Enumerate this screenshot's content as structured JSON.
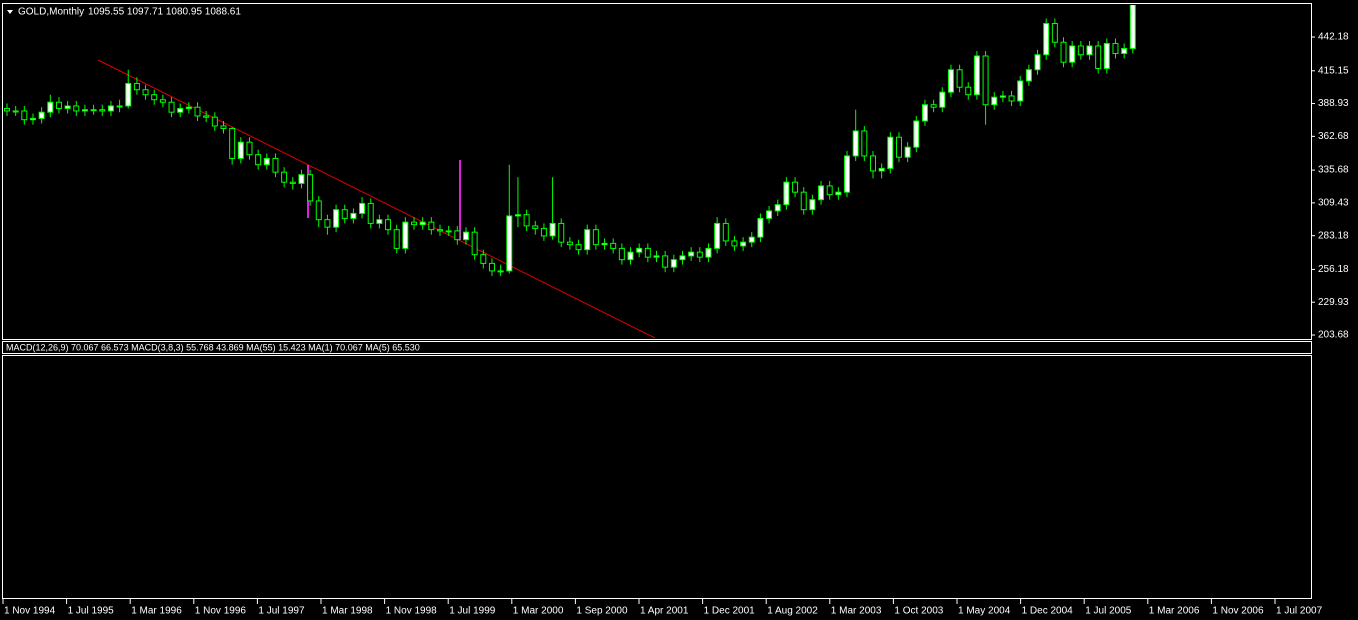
{
  "chart_data": {
    "type": "candlestick",
    "title": "GOLD,Monthly",
    "subtitle": "1095.55 1097.71 1080.95 1088.61",
    "indicator_label": "MACD(12,26,9) 70.067 66.573 MACD(3,8,3) 55.768 43.869 MA(55) 15.423 MA(1) 70.067 MA(5) 65.530",
    "up_color": "#ffffff",
    "down_color": "#000000",
    "wick_color": "#00ff00",
    "ylim": [
      201.3,
      467.8
    ],
    "yticks": [
      442.18,
      415.15,
      388.93,
      362.68,
      335.68,
      309.43,
      283.18,
      256.18,
      229.93,
      203.68
    ],
    "xticks": [
      "1 Nov 1994",
      "1 Jul 1995",
      "1 Mar 1996",
      "1 Nov 1996",
      "1 Jul 1997",
      "1 Mar 1998",
      "1 Nov 1998",
      "1 Jul 1999",
      "1 Mar 2000",
      "1 Sep 2000",
      "1 Apr 2001",
      "1 Dec 2001",
      "1 Aug 2002",
      "1 Mar 2003",
      "1 Oct 2003",
      "1 May 2004",
      "1 Dec 2004",
      "1 Jul 2005",
      "1 Mar 2006",
      "1 Nov 2006",
      "1 Jul 2007"
    ],
    "open": [
      385,
      383,
      383,
      376,
      377,
      382,
      390,
      385,
      387,
      383,
      384,
      384,
      383,
      387,
      387,
      405,
      400,
      396,
      392,
      390,
      382,
      385,
      386,
      379,
      378,
      371,
      369,
      345,
      358,
      348,
      340,
      345,
      334,
      326,
      325,
      332,
      311,
      296,
      290,
      304,
      297,
      301,
      309,
      293,
      296,
      288,
      273,
      294,
      292,
      294,
      288,
      287,
      287,
      280,
      286,
      268,
      261,
      255,
      255,
      299,
      300,
      291,
      289,
      283,
      293,
      278,
      276,
      272,
      288,
      276,
      277,
      273,
      264,
      270,
      273,
      266,
      267,
      258,
      264,
      267,
      270,
      266,
      273,
      293,
      279,
      275,
      278,
      282,
      297,
      303,
      308,
      326,
      318,
      304,
      312,
      323,
      316,
      318,
      347,
      367,
      347,
      335,
      337,
      362,
      346,
      354,
      375,
      388,
      386,
      398,
      416,
      402,
      396,
      427,
      388,
      394,
      395,
      391,
      407,
      416,
      428,
      453,
      438,
      422,
      435,
      428,
      435,
      417,
      437,
      429,
      433
    ],
    "high": [
      389,
      387,
      387,
      381,
      386,
      396,
      394,
      391,
      391,
      388,
      388,
      388,
      391,
      392,
      416,
      410,
      404,
      400,
      396,
      394,
      389,
      390,
      390,
      383,
      382,
      375,
      370,
      362,
      362,
      352,
      349,
      349,
      338,
      330,
      336,
      336,
      315,
      300,
      308,
      308,
      305,
      314,
      313,
      300,
      300,
      292,
      298,
      298,
      298,
      298,
      292,
      291,
      291,
      290,
      290,
      272,
      265,
      260,
      340,
      330,
      304,
      295,
      293,
      330,
      297,
      282,
      280,
      292,
      292,
      281,
      281,
      277,
      274,
      277,
      277,
      271,
      271,
      268,
      271,
      274,
      274,
      277,
      298,
      297,
      283,
      282,
      286,
      301,
      307,
      312,
      330,
      330,
      322,
      316,
      327,
      327,
      322,
      351,
      384,
      371,
      351,
      341,
      366,
      366,
      358,
      379,
      392,
      392,
      402,
      420,
      420,
      406,
      431,
      431,
      398,
      399,
      399,
      411,
      420,
      432,
      457,
      457,
      442,
      439,
      439,
      439,
      439,
      441,
      441,
      437,
      472
    ],
    "low": [
      379,
      379,
      372,
      372,
      373,
      378,
      381,
      381,
      379,
      379,
      380,
      379,
      379,
      382,
      385,
      396,
      392,
      388,
      386,
      378,
      378,
      381,
      375,
      374,
      367,
      365,
      340,
      341,
      344,
      336,
      336,
      330,
      322,
      320,
      321,
      307,
      290,
      284,
      286,
      293,
      293,
      297,
      289,
      289,
      284,
      269,
      269,
      288,
      288,
      284,
      283,
      283,
      276,
      276,
      264,
      257,
      251,
      251,
      253,
      290,
      287,
      284,
      279,
      280,
      274,
      272,
      268,
      268,
      272,
      272,
      269,
      260,
      260,
      266,
      262,
      262,
      254,
      254,
      260,
      263,
      262,
      262,
      269,
      275,
      271,
      271,
      274,
      278,
      293,
      299,
      304,
      314,
      300,
      300,
      308,
      312,
      312,
      314,
      343,
      343,
      329,
      329,
      333,
      342,
      342,
      350,
      371,
      382,
      382,
      394,
      398,
      392,
      392,
      372,
      384,
      390,
      387,
      387,
      403,
      412,
      424,
      434,
      418,
      418,
      424,
      424,
      413,
      413,
      425,
      425,
      429
    ],
    "close": [
      383,
      383,
      376,
      377,
      382,
      390,
      385,
      387,
      383,
      384,
      384,
      383,
      387,
      387,
      405,
      400,
      396,
      392,
      390,
      382,
      385,
      386,
      379,
      378,
      371,
      369,
      345,
      358,
      348,
      340,
      345,
      334,
      326,
      325,
      332,
      311,
      296,
      290,
      304,
      297,
      301,
      309,
      293,
      296,
      288,
      273,
      294,
      292,
      294,
      288,
      287,
      287,
      280,
      286,
      268,
      261,
      255,
      255,
      299,
      300,
      291,
      289,
      283,
      293,
      278,
      276,
      272,
      288,
      276,
      277,
      273,
      264,
      270,
      273,
      266,
      267,
      258,
      264,
      267,
      270,
      266,
      273,
      293,
      279,
      275,
      278,
      282,
      297,
      303,
      308,
      326,
      318,
      304,
      312,
      323,
      316,
      318,
      347,
      367,
      347,
      335,
      337,
      362,
      346,
      354,
      375,
      388,
      386,
      398,
      416,
      402,
      396,
      427,
      388,
      394,
      395,
      391,
      407,
      416,
      428,
      453,
      438,
      422,
      435,
      428,
      435,
      417,
      437,
      429,
      433,
      468
    ]
  }
}
